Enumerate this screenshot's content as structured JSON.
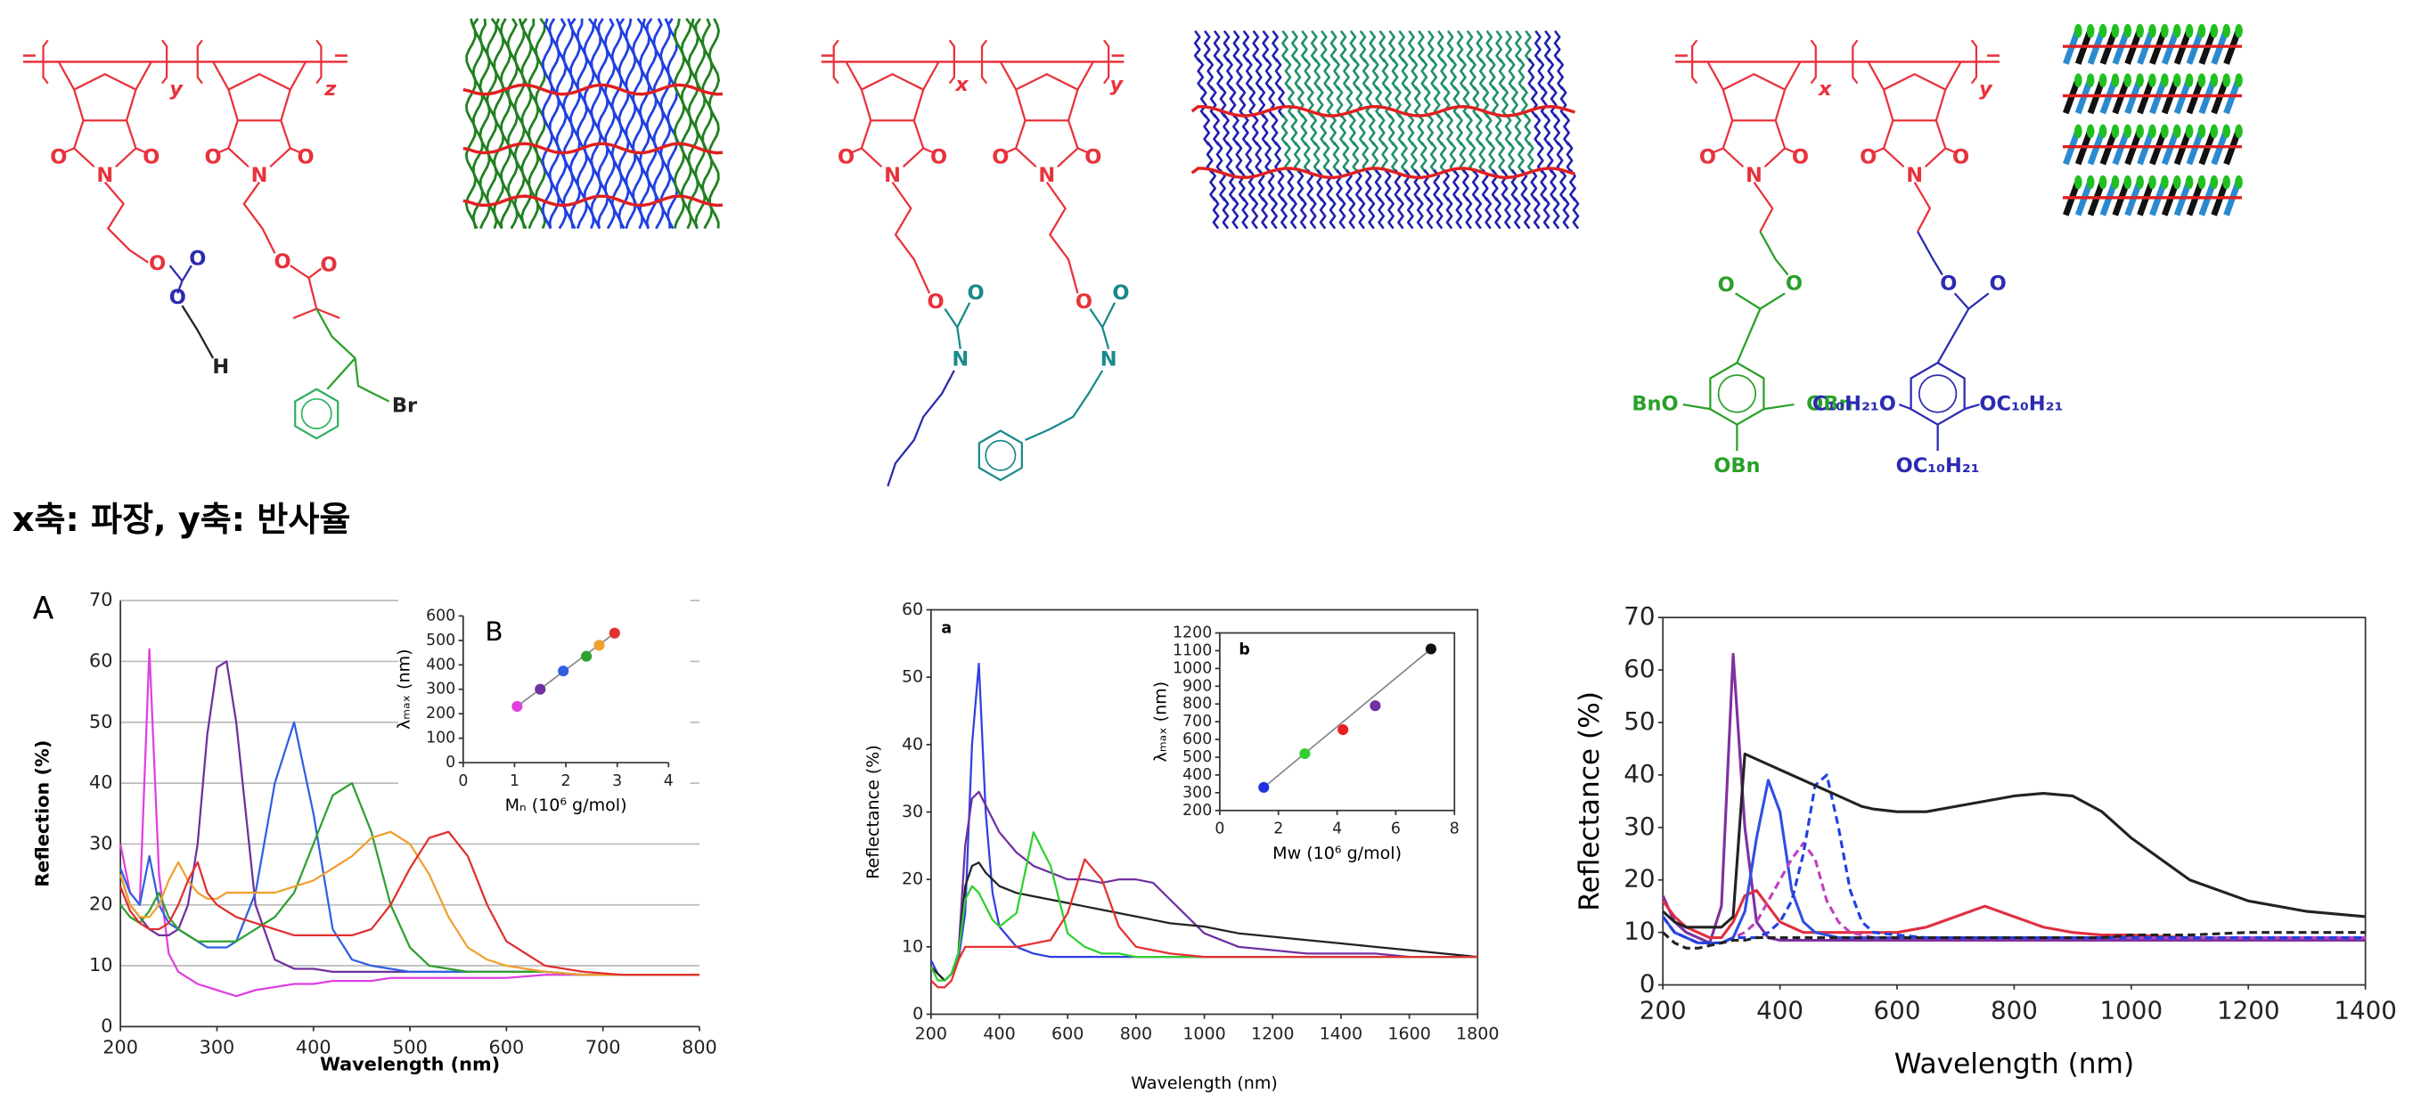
{
  "caption": "x축: 파장, y축: 반사율",
  "structures": [
    {
      "labels": [
        "y",
        "z",
        "O",
        "O",
        "N",
        "O",
        "O",
        "N",
        "O",
        "O",
        "O",
        "H",
        "O",
        "O",
        "Br"
      ]
    },
    {
      "labels": [
        "x",
        "y",
        "O",
        "O",
        "N",
        "O",
        "O",
        "N",
        "O",
        "O",
        "N",
        "O",
        "O",
        "N"
      ]
    },
    {
      "labels": [
        "x",
        "y",
        "O",
        "O",
        "N",
        "O",
        "O",
        "N",
        "O",
        "O",
        "O",
        "O",
        "BnO",
        "OBn",
        "OBn",
        "C₁₀H₂₁O",
        "OC₁₀H₂₁",
        "OC₁₀H₂₁"
      ]
    }
  ],
  "chart_data": [
    {
      "type": "line",
      "panel": "A",
      "xlabel": "Wavelength (nm)",
      "ylabel": "Reflection (%)",
      "xlim": [
        200,
        800
      ],
      "xticks": [
        200,
        300,
        400,
        500,
        600,
        700,
        800
      ],
      "ylim": [
        0,
        70
      ],
      "yticks": [
        0,
        10,
        20,
        30,
        40,
        50,
        60,
        70
      ],
      "grid": true,
      "x": [
        200,
        210,
        220,
        230,
        240,
        250,
        260,
        270,
        280,
        290,
        300,
        310,
        320,
        340,
        360,
        380,
        400,
        420,
        440,
        460,
        480,
        500,
        520,
        540,
        560,
        580,
        600,
        640,
        680,
        720,
        760,
        800
      ],
      "series": [
        {
          "color": "#e040e0",
          "values": [
            30,
            22,
            20,
            62,
            25,
            12,
            9,
            8,
            7,
            6.5,
            6,
            5.5,
            5,
            6,
            6.5,
            7,
            7,
            7.5,
            7.5,
            7.5,
            8,
            8,
            8,
            8,
            8,
            8,
            8,
            8.5,
            8.5,
            8.5,
            8.5,
            8.5
          ]
        },
        {
          "color": "#7030a0",
          "values": [
            25,
            20,
            18,
            16,
            15,
            15,
            16,
            20,
            30,
            48,
            59,
            60,
            50,
            20,
            11,
            9.5,
            9.5,
            9,
            9,
            9,
            9,
            9,
            9,
            9,
            9,
            9,
            9,
            9,
            8.5,
            8.5,
            8.5,
            8.5
          ]
        },
        {
          "color": "#3060e0",
          "values": [
            26,
            22,
            20,
            28,
            20,
            17,
            16,
            15,
            14,
            13,
            13,
            13,
            14,
            22,
            40,
            50,
            35,
            16,
            11,
            10,
            9.5,
            9,
            9,
            9,
            9,
            9,
            9,
            9,
            8.5,
            8.5,
            8.5,
            8.5
          ]
        },
        {
          "color": "#30a030",
          "values": [
            20,
            18,
            17,
            19,
            22,
            18,
            16,
            15,
            14,
            14,
            14,
            14,
            14,
            16,
            18,
            22,
            30,
            38,
            40,
            32,
            20,
            13,
            10,
            9.5,
            9,
            9,
            9,
            9,
            8.5,
            8.5,
            8.5,
            8.5
          ]
        },
        {
          "color": "#f0a030",
          "values": [
            25,
            20,
            18,
            18,
            20,
            24,
            27,
            24,
            22,
            21,
            21,
            22,
            22,
            22,
            22,
            23,
            24,
            26,
            28,
            31,
            32,
            30,
            25,
            18,
            13,
            11,
            10,
            9,
            8.5,
            8.5,
            8.5,
            8.5
          ]
        },
        {
          "color": "#e03030",
          "values": [
            23,
            19,
            17,
            16,
            16,
            17,
            20,
            24,
            27,
            22,
            20,
            19,
            18,
            17,
            16,
            15,
            15,
            15,
            15,
            16,
            20,
            26,
            31,
            32,
            28,
            20,
            14,
            10,
            9,
            8.5,
            8.5,
            8.5
          ]
        }
      ]
    },
    {
      "type": "scatter",
      "panel": "B",
      "xlabel": "Mₙ (10⁶ g/mol)",
      "ylabel": "λₘₐₓ (nm)",
      "xlim": [
        0,
        4
      ],
      "xticks": [
        0,
        1,
        2,
        3,
        4
      ],
      "ylim": [
        0,
        600
      ],
      "yticks": [
        0,
        100,
        200,
        300,
        400,
        500,
        600
      ],
      "x": [
        1.05,
        1.5,
        1.95,
        2.4,
        2.65,
        2.95
      ],
      "values": [
        230,
        300,
        375,
        435,
        480,
        530
      ],
      "colors": [
        "#e040e0",
        "#7030a0",
        "#3060e0",
        "#30a030",
        "#f0a030",
        "#e03030"
      ]
    },
    {
      "type": "line",
      "panel": "a",
      "xlabel": "Wavelength (nm)",
      "ylabel": "Reflectance (%)",
      "xlim": [
        200,
        1800
      ],
      "xticks": [
        200,
        400,
        600,
        800,
        1000,
        1200,
        1400,
        1600,
        1800
      ],
      "ylim": [
        0,
        60
      ],
      "yticks": [
        0,
        10,
        20,
        30,
        40,
        50,
        60
      ],
      "x": [
        200,
        220,
        240,
        260,
        280,
        300,
        320,
        340,
        360,
        380,
        400,
        450,
        500,
        550,
        600,
        650,
        700,
        750,
        800,
        850,
        900,
        1000,
        1100,
        1200,
        1300,
        1400,
        1500,
        1600,
        1700,
        1800
      ],
      "series": [
        {
          "color": "#3040e0",
          "values": [
            8,
            6,
            5,
            6,
            8,
            15,
            40,
            52,
            30,
            18,
            13,
            10,
            9,
            8.5,
            8.5,
            8.5,
            8.5,
            8.5,
            8.5,
            8.5,
            8.5,
            8.5,
            8.5,
            8.5,
            8.5,
            8.5,
            8.5,
            8.5,
            8.5,
            8.5
          ]
        },
        {
          "color": "#7030a0",
          "values": [
            7,
            6,
            5,
            6,
            9,
            25,
            32,
            33,
            31,
            29,
            27,
            24,
            22,
            21,
            20,
            20,
            19.5,
            20,
            20,
            19.5,
            17,
            12,
            10,
            9.5,
            9,
            9,
            9,
            8.5,
            8.5,
            8.5
          ]
        },
        {
          "color": "#222222",
          "values": [
            7,
            6,
            5,
            6,
            9,
            19,
            22,
            22.5,
            21,
            20,
            19,
            18,
            17.5,
            17,
            16.5,
            16,
            15.5,
            15,
            14.5,
            14,
            13.5,
            13,
            12,
            11.5,
            11,
            10.5,
            10,
            9.5,
            9,
            8.5
          ]
        },
        {
          "color": "#30d030",
          "values": [
            7,
            5,
            5,
            6,
            9,
            17,
            19,
            18,
            16,
            14,
            13,
            15,
            27,
            22,
            12,
            10,
            9,
            9,
            8.5,
            8.5,
            8.5,
            8.5,
            8.5,
            8.5,
            8.5,
            8.5,
            8.5,
            8.5,
            8.5,
            8.5
          ]
        },
        {
          "color": "#e83030",
          "values": [
            5,
            4,
            4,
            5,
            8,
            10,
            10,
            10,
            10,
            10,
            10,
            10,
            10.5,
            11,
            15,
            23,
            20,
            13,
            10,
            9.5,
            9,
            8.5,
            8.5,
            8.5,
            8.5,
            8.5,
            8.5,
            8.5,
            8.5,
            8.5
          ]
        }
      ]
    },
    {
      "type": "scatter",
      "panel": "b",
      "xlabel": "Mw (10⁶ g/mol)",
      "ylabel": "λₘₐₓ (nm)",
      "xlim": [
        0,
        8
      ],
      "xticks": [
        0,
        2,
        4,
        6,
        8
      ],
      "ylim": [
        200,
        1200
      ],
      "yticks": [
        200,
        300,
        400,
        500,
        600,
        700,
        800,
        900,
        1000,
        1100,
        1200
      ],
      "x": [
        1.5,
        2.9,
        4.2,
        5.3,
        7.2
      ],
      "values": [
        330,
        520,
        655,
        790,
        1110
      ],
      "colors": [
        "#2030e0",
        "#30d030",
        "#e82020",
        "#7030a0",
        "#111111"
      ]
    },
    {
      "type": "line",
      "xlabel": "Wavelength (nm)",
      "ylabel": "Reflectance (%)",
      "xlim": [
        200,
        1400
      ],
      "xticks": [
        200,
        400,
        600,
        800,
        1000,
        1200,
        1400
      ],
      "ylim": [
        0,
        70
      ],
      "yticks": [
        0,
        10,
        20,
        30,
        40,
        50,
        60,
        70
      ],
      "x": [
        200,
        220,
        240,
        260,
        280,
        300,
        320,
        340,
        360,
        380,
        400,
        420,
        440,
        460,
        480,
        500,
        520,
        540,
        560,
        600,
        650,
        700,
        750,
        800,
        850,
        900,
        950,
        1000,
        1100,
        1200,
        1300,
        1400
      ],
      "series": [
        {
          "color": "#8030a0",
          "values": [
            17,
            12,
            10,
            9,
            8,
            15,
            63,
            30,
            12,
            9,
            8.5,
            8.5,
            8.5,
            8.5,
            8.5,
            8.5,
            8.5,
            8.5,
            8.5,
            8.5,
            8.5,
            8.5,
            8.5,
            8.5,
            8.5,
            8.5,
            8.5,
            8.5,
            8.5,
            8.5,
            8.5,
            8.5
          ]
        },
        {
          "color": "#e03040",
          "values": [
            16,
            13,
            11,
            10,
            9,
            9,
            12,
            17,
            18,
            15,
            12,
            11,
            10,
            10,
            10,
            10,
            10,
            10,
            10,
            10,
            11,
            13,
            15,
            13,
            11,
            10,
            9.5,
            9.5,
            9,
            9,
            9,
            9
          ]
        },
        {
          "color": "#3050e0",
          "values": [
            13,
            10,
            9,
            8,
            8,
            8,
            9,
            14,
            28,
            39,
            33,
            18,
            12,
            10,
            9.5,
            9,
            9,
            9,
            9,
            9,
            9,
            9,
            9,
            9,
            9,
            9,
            9,
            9,
            9,
            9,
            9,
            9
          ]
        },
        {
          "color": "#c040c0",
          "dash": true,
          "values": [
            13,
            10,
            9,
            8,
            8,
            8,
            9,
            10,
            12,
            16,
            20,
            24,
            27,
            24,
            16,
            12,
            10,
            9.5,
            9,
            9,
            9,
            9,
            9,
            9,
            9,
            9,
            9,
            9,
            9,
            9,
            9,
            9
          ]
        },
        {
          "color": "#2040e0",
          "dash": true,
          "values": [
            13,
            10,
            9,
            8,
            8,
            8,
            9,
            9,
            9,
            10,
            12,
            16,
            25,
            38,
            40,
            30,
            18,
            12,
            10,
            9.5,
            9,
            9,
            9,
            9,
            9,
            9,
            9,
            9,
            9,
            9,
            9,
            9
          ]
        },
        {
          "color": "#222222",
          "values": [
            14,
            12,
            11,
            11,
            11,
            11,
            13,
            44,
            43,
            42,
            41,
            40,
            39,
            38,
            37,
            36,
            35,
            34,
            33.5,
            33,
            33,
            34,
            35,
            36,
            36.5,
            36,
            33,
            28,
            20,
            16,
            14,
            13
          ]
        },
        {
          "color": "#222222",
          "dash": true,
          "values": [
            10,
            8,
            7,
            7,
            7.5,
            8,
            8.5,
            8.5,
            9,
            9,
            9,
            9,
            9,
            9,
            9,
            9,
            9,
            9,
            9,
            9,
            9,
            9,
            9,
            9,
            9,
            9,
            9,
            9.5,
            9.5,
            10,
            10,
            10
          ]
        }
      ]
    }
  ]
}
